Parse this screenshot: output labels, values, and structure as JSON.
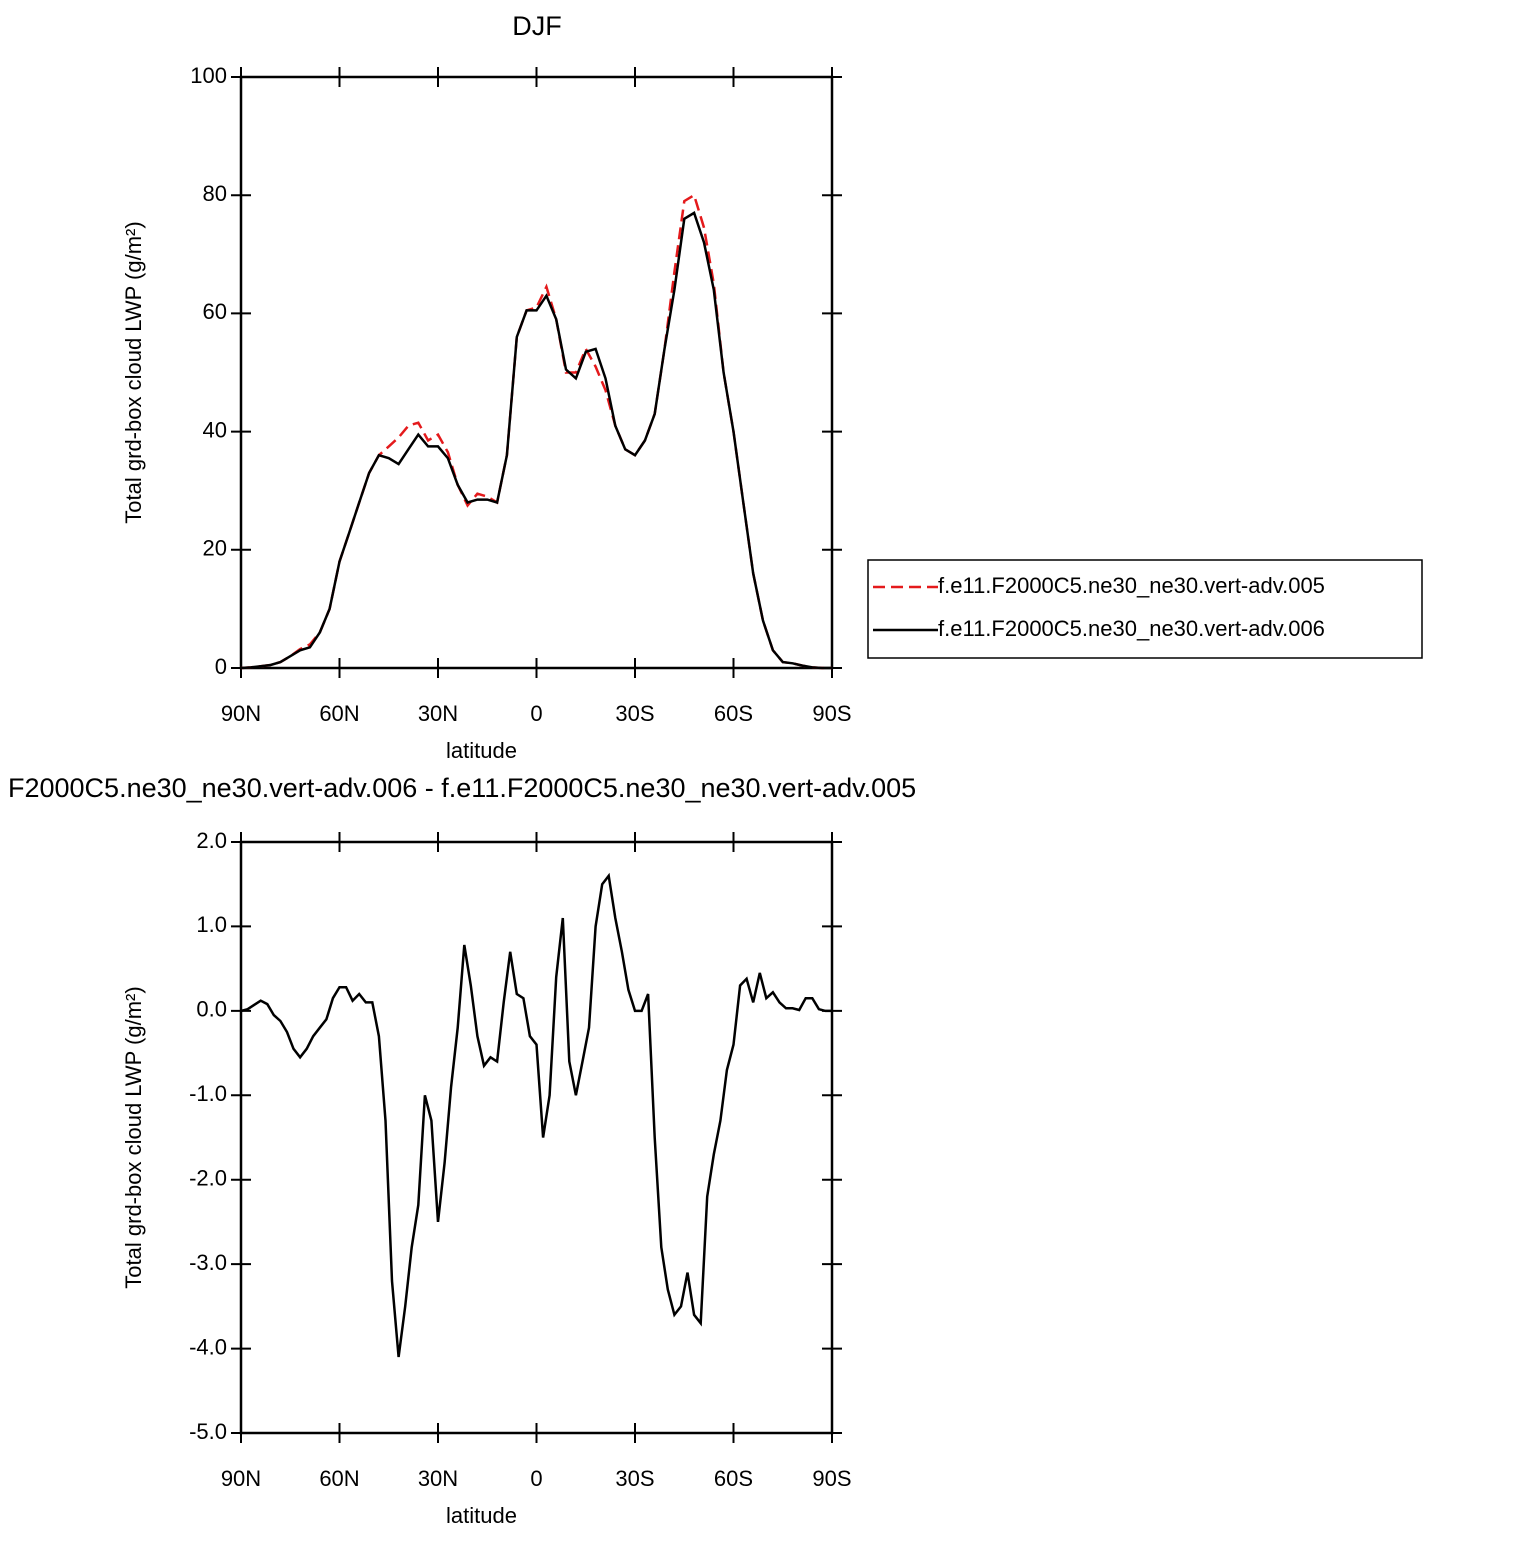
{
  "chart_data": [
    {
      "type": "line",
      "title": "DJF",
      "xlabel": "latitude",
      "ylabel": "Total grd-box cloud LWP (g/m²)",
      "x": [
        90,
        87,
        84,
        81,
        78,
        75,
        72,
        69,
        66,
        63,
        60,
        57,
        54,
        51,
        48,
        45,
        42,
        39,
        36,
        33,
        30,
        27,
        24,
        21,
        18,
        15,
        12,
        9,
        6,
        3,
        0,
        -3,
        -6,
        -9,
        -12,
        -15,
        -18,
        -21,
        -24,
        -27,
        -30,
        -33,
        -36,
        -39,
        -42,
        -45,
        -48,
        -51,
        -54,
        -57,
        -60,
        -63,
        -66,
        -69,
        -72,
        -75,
        -78,
        -81,
        -84,
        -87,
        -90
      ],
      "series": [
        {
          "name": "f.e11.F2000C5.ne30_ne30.vert-adv.005",
          "color": "#e41a1c",
          "line_style": "dashed",
          "values": [
            0,
            0.1,
            0.3,
            0.5,
            1,
            2,
            3.2,
            4,
            6,
            10,
            18,
            23,
            28,
            33,
            36,
            37.5,
            39,
            41,
            41.5,
            38.5,
            39.5,
            36.5,
            31,
            27.5,
            29.5,
            29,
            28,
            36,
            56,
            60.5,
            61,
            64.5,
            59,
            50,
            50,
            54,
            51,
            47,
            41,
            37,
            36,
            38.5,
            43,
            54,
            67,
            79,
            80,
            74.5,
            65,
            50,
            40,
            28,
            16,
            8,
            3,
            1,
            0.8,
            0.4,
            0.1,
            0,
            0
          ]
        },
        {
          "name": "f.e11.F2000C5.ne30_ne30.vert-adv.006",
          "color": "#000000",
          "line_style": "solid",
          "values": [
            0,
            0.1,
            0.3,
            0.5,
            1,
            2,
            3,
            3.5,
            6,
            10,
            18,
            23,
            28,
            33,
            36,
            35.5,
            34.5,
            37,
            39.5,
            37.5,
            37.5,
            35.5,
            31,
            28,
            28.5,
            28.5,
            28,
            36,
            56,
            60.5,
            60.5,
            63,
            59,
            50.5,
            49,
            53.5,
            54,
            49,
            41,
            37,
            36,
            38.5,
            43,
            54,
            64,
            76,
            77,
            72,
            64,
            50,
            40,
            28,
            16,
            8,
            3,
            1,
            0.8,
            0.4,
            0.1,
            0,
            0
          ]
        }
      ],
      "xlim": [
        90,
        -90
      ],
      "xticks": [
        {
          "value": 90,
          "label": "90N"
        },
        {
          "value": 60,
          "label": "60N"
        },
        {
          "value": 30,
          "label": "30N"
        },
        0,
        {
          "value": -30,
          "label": "30S"
        },
        {
          "value": -60,
          "label": "60S"
        },
        {
          "value": -90,
          "label": "90S"
        }
      ],
      "ylim": [
        0,
        100
      ],
      "yticks": [
        0,
        20,
        40,
        60,
        80,
        100
      ],
      "legend": "right"
    },
    {
      "type": "line",
      "title": "F2000C5.ne30_ne30.vert-adv.006 - f.e11.F2000C5.ne30_ne30.vert-adv.005",
      "xlabel": "latitude",
      "ylabel": "Total grd-box cloud LWP (g/m²)",
      "x": [
        90,
        88,
        86,
        84,
        82,
        80,
        78,
        76,
        74,
        72,
        70,
        68,
        66,
        64,
        62,
        60,
        58,
        56,
        54,
        52,
        50,
        48,
        46,
        44,
        42,
        40,
        38,
        36,
        34,
        32,
        30,
        28,
        26,
        24,
        22,
        20,
        18,
        16,
        14,
        12,
        10,
        8,
        6,
        4,
        2,
        0,
        -2,
        -4,
        -6,
        -8,
        -10,
        -12,
        -14,
        -16,
        -18,
        -20,
        -22,
        -24,
        -26,
        -28,
        -30,
        -32,
        -34,
        -36,
        -38,
        -40,
        -42,
        -44,
        -46,
        -48,
        -50,
        -52,
        -54,
        -56,
        -58,
        -60,
        -62,
        -64,
        -66,
        -68,
        -70,
        -72,
        -74,
        -76,
        -78,
        -80,
        -82,
        -84,
        -86,
        -88,
        -90
      ],
      "series": [
        {
          "color": "#000000",
          "line_style": "solid",
          "values": [
            0,
            0.02,
            0.07,
            0.12,
            0.08,
            -0.05,
            -0.12,
            -0.25,
            -0.45,
            -0.55,
            -0.45,
            -0.3,
            -0.2,
            -0.1,
            0.15,
            0.28,
            0.28,
            0.12,
            0.2,
            0.1,
            0.1,
            -0.3,
            -1.3,
            -3.2,
            -4.1,
            -3.5,
            -2.8,
            -2.3,
            -1,
            -1.3,
            -2.5,
            -1.8,
            -0.9,
            -0.2,
            0.78,
            0.3,
            -0.3,
            -0.65,
            -0.55,
            -0.6,
            0.1,
            0.7,
            0.2,
            0.15,
            -0.3,
            -0.4,
            -1.5,
            -1,
            0.4,
            1.1,
            -0.6,
            -1,
            -0.6,
            -0.2,
            1,
            1.5,
            1.6,
            1.1,
            0.7,
            0.25,
            0,
            0,
            0.2,
            -1.5,
            -2.8,
            -3.3,
            -3.6,
            -3.5,
            -3.1,
            -3.6,
            -3.7,
            -2.2,
            -1.7,
            -1.3,
            -0.7,
            -0.4,
            0.3,
            0.38,
            0.1,
            0.45,
            0.15,
            0.22,
            0.1,
            0.03,
            0.03,
            0.01,
            0.15,
            0.15,
            0.02,
            0,
            0
          ]
        }
      ],
      "xlim": [
        90,
        -90
      ],
      "xticks": [
        {
          "value": 90,
          "label": "90N"
        },
        {
          "value": 60,
          "label": "60N"
        },
        {
          "value": 30,
          "label": "30N"
        },
        0,
        {
          "value": -30,
          "label": "30S"
        },
        {
          "value": -60,
          "label": "60S"
        },
        {
          "value": -90,
          "label": "90S"
        }
      ],
      "ylim": [
        -5,
        2
      ],
      "yticks": [
        {
          "value": -5,
          "label": "-5.0"
        },
        {
          "value": -4,
          "label": "-4.0"
        },
        {
          "value": -3,
          "label": "-3.0"
        },
        {
          "value": -2,
          "label": "-2.0"
        },
        {
          "value": -1,
          "label": "-1.0"
        },
        {
          "value": 0,
          "label": "0.0"
        },
        {
          "value": 1,
          "label": "1.0"
        },
        {
          "value": 2,
          "label": "2.0"
        }
      ]
    }
  ]
}
